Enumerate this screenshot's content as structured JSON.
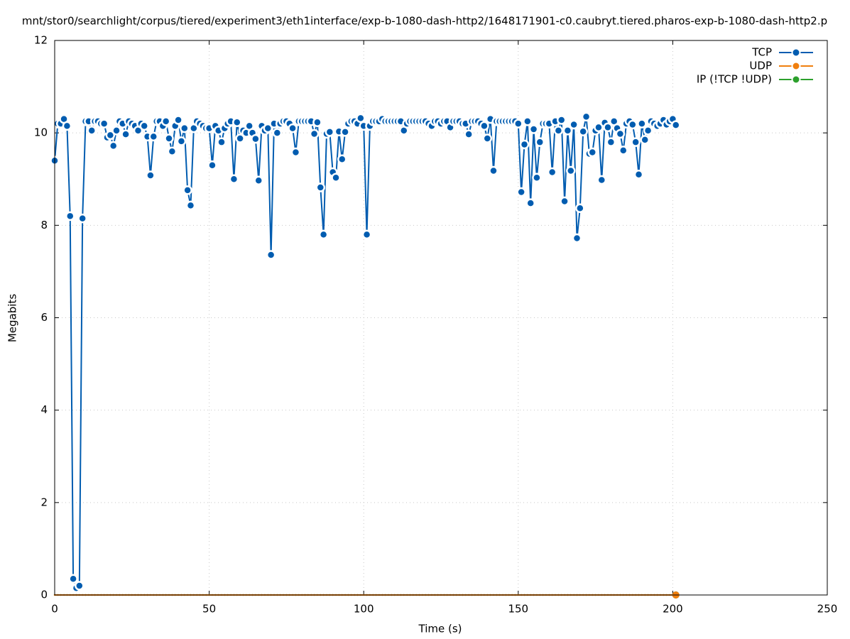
{
  "chart_data": {
    "type": "line",
    "title": "mnt/stor0/searchlight/corpus/tiered/experiment3/eth1interface/exp-b-1080-dash-http2/1648171901-c0.caubryt.tiered.pharos-exp-b-1080-dash-http2.p",
    "x_label": "Time (s)",
    "y_label": "Megabits",
    "xlim": [
      0,
      250
    ],
    "xticks": [
      0,
      50,
      100,
      150,
      200,
      250
    ],
    "ylim": [
      0,
      12
    ],
    "yticks": [
      0,
      2,
      4,
      6,
      8,
      10,
      12
    ],
    "grid": true,
    "legend": "top-right",
    "x": [
      0,
      1,
      2,
      3,
      4,
      5,
      6,
      7,
      8,
      9,
      10,
      11,
      12,
      13,
      14,
      15,
      16,
      17,
      18,
      19,
      20,
      21,
      22,
      23,
      24,
      25,
      26,
      27,
      28,
      29,
      30,
      31,
      32,
      33,
      34,
      35,
      36,
      37,
      38,
      39,
      40,
      41,
      42,
      43,
      44,
      45,
      46,
      47,
      48,
      49,
      50,
      51,
      52,
      53,
      54,
      55,
      56,
      57,
      58,
      59,
      60,
      61,
      62,
      63,
      64,
      65,
      66,
      67,
      68,
      69,
      70,
      71,
      72,
      73,
      74,
      75,
      76,
      77,
      78,
      79,
      80,
      81,
      82,
      83,
      84,
      85,
      86,
      87,
      88,
      89,
      90,
      91,
      92,
      93,
      94,
      95,
      96,
      97,
      98,
      99,
      100,
      101,
      102,
      103,
      104,
      105,
      106,
      107,
      108,
      109,
      110,
      111,
      112,
      113,
      114,
      115,
      116,
      117,
      118,
      119,
      120,
      121,
      122,
      123,
      124,
      125,
      126,
      127,
      128,
      129,
      130,
      131,
      132,
      133,
      134,
      135,
      136,
      137,
      138,
      139,
      140,
      141,
      142,
      143,
      144,
      145,
      146,
      147,
      148,
      149,
      150,
      151,
      152,
      153,
      154,
      155,
      156,
      157,
      158,
      159,
      160,
      161,
      162,
      163,
      164,
      165,
      166,
      167,
      168,
      169,
      170,
      171,
      172,
      173,
      174,
      175,
      176,
      177,
      178,
      179,
      180,
      181,
      182,
      183,
      184,
      185,
      186,
      187,
      188,
      189,
      190,
      191,
      192,
      193,
      194,
      195,
      196,
      197,
      198,
      199,
      200,
      201
    ],
    "series": [
      {
        "name": "TCP",
        "color": "#005cb0",
        "values": [
          9.4,
          10.2,
          10.2,
          10.3,
          10.15,
          8.2,
          0.35,
          0.15,
          0.2,
          8.15,
          10.25,
          10.25,
          10.05,
          10.25,
          10.25,
          10.2,
          10.2,
          9.9,
          9.95,
          9.72,
          10.05,
          10.25,
          10.2,
          9.97,
          10.25,
          10.2,
          10.15,
          10.05,
          10.2,
          10.15,
          9.92,
          9.08,
          9.92,
          10.25,
          10.25,
          10.15,
          10.25,
          9.88,
          9.6,
          10.15,
          10.28,
          9.82,
          10.1,
          8.76,
          8.43,
          10.1,
          10.25,
          10.2,
          10.15,
          10.1,
          10.1,
          9.3,
          10.15,
          10.05,
          9.8,
          10.1,
          10.2,
          10.25,
          9.0,
          10.23,
          9.88,
          10.05,
          10.0,
          10.15,
          10.0,
          9.87,
          8.97,
          10.15,
          10.05,
          10.1,
          7.36,
          10.2,
          10.0,
          10.2,
          10.25,
          10.25,
          10.2,
          10.1,
          9.58,
          10.25,
          10.25,
          10.25,
          10.25,
          10.25,
          9.98,
          10.23,
          8.82,
          7.8,
          9.98,
          10.02,
          9.15,
          9.03,
          10.03,
          9.43,
          10.02,
          10.2,
          10.25,
          10.25,
          10.2,
          10.32,
          10.15,
          7.8,
          10.15,
          10.25,
          10.25,
          10.25,
          10.3,
          10.25,
          10.25,
          10.25,
          10.25,
          10.25,
          10.25,
          10.05,
          10.2,
          10.25,
          10.25,
          10.25,
          10.25,
          10.25,
          10.25,
          10.2,
          10.15,
          10.25,
          10.25,
          10.2,
          10.25,
          10.25,
          10.12,
          10.25,
          10.25,
          10.25,
          10.2,
          10.2,
          9.97,
          10.25,
          10.25,
          10.25,
          10.2,
          10.15,
          9.88,
          10.3,
          9.18,
          10.25,
          10.25,
          10.25,
          10.25,
          10.25,
          10.25,
          10.25,
          10.2,
          8.72,
          9.75,
          10.25,
          8.48,
          10.08,
          9.03,
          9.8,
          10.2,
          10.2,
          10.2,
          9.15,
          10.25,
          10.05,
          10.28,
          8.52,
          10.05,
          9.18,
          10.18,
          7.72,
          8.37,
          10.03,
          10.35,
          9.55,
          9.58,
          10.05,
          10.12,
          8.98,
          10.22,
          10.12,
          9.8,
          10.25,
          10.1,
          9.98,
          9.62,
          10.2,
          10.25,
          10.18,
          9.8,
          9.1,
          10.2,
          9.85,
          10.05,
          10.25,
          10.2,
          10.15,
          10.2,
          10.28,
          10.18,
          10.25,
          10.3,
          10.17
        ]
      },
      {
        "name": "UDP",
        "color": "#f07f0e",
        "values": [
          0,
          0,
          0,
          0,
          0,
          0,
          0,
          0,
          0,
          0,
          0,
          0,
          0,
          0,
          0,
          0,
          0,
          0,
          0,
          0,
          0,
          0,
          0,
          0,
          0,
          0,
          0,
          0,
          0,
          0,
          0,
          0,
          0,
          0,
          0,
          0,
          0,
          0,
          0,
          0,
          0,
          0,
          0,
          0,
          0,
          0,
          0,
          0,
          0,
          0,
          0,
          0,
          0,
          0,
          0,
          0,
          0,
          0,
          0,
          0,
          0,
          0,
          0,
          0,
          0,
          0,
          0,
          0,
          0,
          0,
          0,
          0,
          0,
          0,
          0,
          0,
          0,
          0,
          0,
          0,
          0,
          0,
          0,
          0,
          0,
          0,
          0,
          0,
          0,
          0,
          0,
          0,
          0,
          0,
          0,
          0,
          0,
          0,
          0,
          0,
          0,
          0,
          0,
          0,
          0,
          0,
          0,
          0,
          0,
          0,
          0,
          0,
          0,
          0,
          0,
          0,
          0,
          0,
          0,
          0,
          0,
          0,
          0,
          0,
          0,
          0,
          0,
          0,
          0,
          0,
          0,
          0,
          0,
          0,
          0,
          0,
          0,
          0,
          0,
          0,
          0,
          0,
          0,
          0,
          0,
          0,
          0,
          0,
          0,
          0,
          0,
          0,
          0,
          0,
          0,
          0,
          0,
          0,
          0,
          0,
          0,
          0,
          0,
          0,
          0,
          0,
          0,
          0,
          0,
          0,
          0,
          0,
          0,
          0,
          0,
          0,
          0,
          0,
          0,
          0,
          0,
          0,
          0,
          0,
          0,
          0,
          0,
          0,
          0,
          0,
          0,
          0,
          0,
          0,
          0,
          0,
          0,
          0,
          0,
          0,
          0,
          0
        ]
      },
      {
        "name": "IP (!TCP  !UDP)",
        "color": "#2ca02c",
        "values": [
          0,
          0,
          0,
          0,
          0,
          0,
          0,
          0,
          0,
          0,
          0,
          0,
          0,
          0,
          0,
          0,
          0,
          0,
          0,
          0,
          0,
          0,
          0,
          0,
          0,
          0,
          0,
          0,
          0,
          0,
          0,
          0,
          0,
          0,
          0,
          0,
          0,
          0,
          0,
          0,
          0,
          0,
          0,
          0,
          0,
          0,
          0,
          0,
          0,
          0,
          0,
          0,
          0,
          0,
          0,
          0,
          0,
          0,
          0,
          0,
          0,
          0,
          0,
          0,
          0,
          0,
          0,
          0,
          0,
          0,
          0,
          0,
          0,
          0,
          0,
          0,
          0,
          0,
          0,
          0,
          0,
          0,
          0,
          0,
          0,
          0,
          0,
          0,
          0,
          0,
          0,
          0,
          0,
          0,
          0,
          0,
          0,
          0,
          0,
          0,
          0,
          0,
          0,
          0,
          0,
          0,
          0,
          0,
          0,
          0,
          0,
          0,
          0,
          0,
          0,
          0,
          0,
          0,
          0,
          0,
          0,
          0,
          0,
          0,
          0,
          0,
          0,
          0,
          0,
          0,
          0,
          0,
          0,
          0,
          0,
          0,
          0,
          0,
          0,
          0,
          0,
          0,
          0,
          0,
          0,
          0,
          0,
          0,
          0,
          0,
          0,
          0,
          0,
          0,
          0,
          0,
          0,
          0,
          0,
          0,
          0,
          0,
          0,
          0,
          0,
          0,
          0,
          0,
          0,
          0,
          0,
          0,
          0,
          0,
          0,
          0,
          0,
          0,
          0,
          0,
          0,
          0,
          0,
          0,
          0,
          0,
          0,
          0,
          0,
          0,
          0,
          0,
          0,
          0,
          0,
          0,
          0,
          0,
          0,
          0,
          0,
          0
        ]
      }
    ]
  }
}
